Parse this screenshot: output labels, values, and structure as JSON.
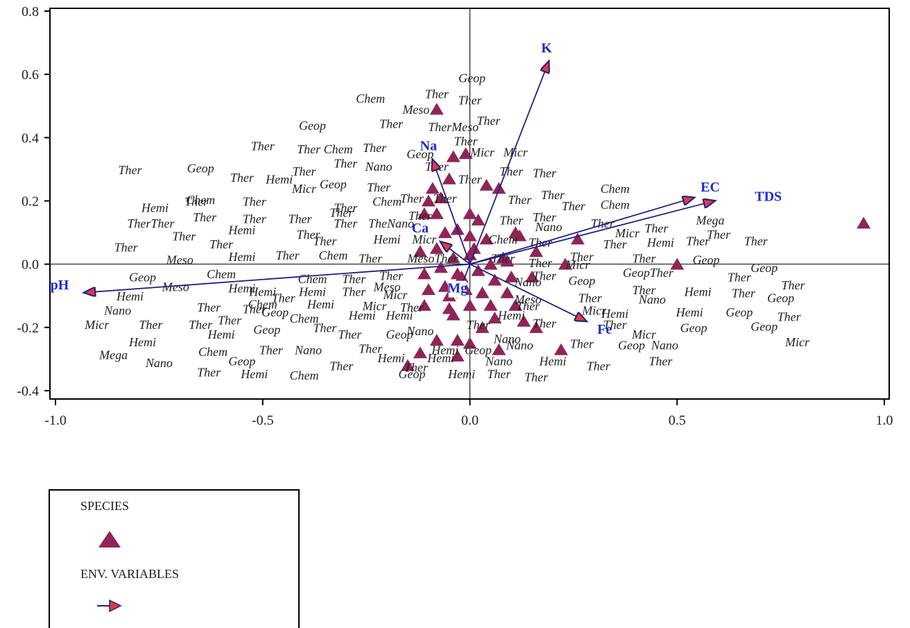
{
  "chart_data": {
    "type": "scatter",
    "title": "",
    "xlabel": "",
    "ylabel": "",
    "xlim": [
      -1.0,
      1.0
    ],
    "ylim": [
      -0.4,
      0.8
    ],
    "xticks": [
      -1.0,
      -0.5,
      0.0,
      0.5,
      1.0
    ],
    "xtick_labels": [
      "-1.0",
      "-0.5",
      "0.0",
      "0.5",
      "1.0"
    ],
    "yticks": [
      0.8,
      0.6,
      0.4,
      0.2,
      0.0,
      -0.2,
      -0.4
    ],
    "ytick_labels": [
      "0.8",
      "0.6",
      "0.4",
      "0.2",
      "0.0",
      "-0.2",
      "-0.4"
    ],
    "zero_lines": true,
    "colors": {
      "species": "#8f2557",
      "env_arrow": "#1f1f8a",
      "arrow_head": "#e63a3a",
      "env_label": "#1a2ad4"
    },
    "env_variables": [
      {
        "name": "K",
        "x": 0.19,
        "y": 0.64
      },
      {
        "name": "Na",
        "x": -0.09,
        "y": 0.33
      },
      {
        "name": "EC",
        "x": 0.54,
        "y": 0.21
      },
      {
        "name": "TDS",
        "x": 0.59,
        "y": 0.2
      },
      {
        "name": "Ca",
        "x": -0.07,
        "y": 0.07
      },
      {
        "name": "pH",
        "x": -0.93,
        "y": -0.09
      },
      {
        "name": "Fe",
        "x": 0.28,
        "y": -0.18
      },
      {
        "name": "Mg",
        "x": -0.03,
        "y": -0.1
      }
    ],
    "env_label_positions": [
      {
        "name": "K",
        "x": 0.185,
        "y": 0.67
      },
      {
        "name": "Na",
        "x": -0.1,
        "y": 0.36
      },
      {
        "name": "EC",
        "x": 0.58,
        "y": 0.23
      },
      {
        "name": "TDS",
        "x": 0.72,
        "y": 0.2
      },
      {
        "name": "Ca",
        "x": -0.12,
        "y": 0.1
      },
      {
        "name": "pH",
        "x": -0.99,
        "y": -0.08
      },
      {
        "name": "Fe",
        "x": 0.325,
        "y": -0.22
      },
      {
        "name": "Mg",
        "x": -0.03,
        "y": -0.09
      }
    ],
    "species_points": [
      {
        "x": 0.95,
        "y": 0.13
      },
      {
        "x": -0.08,
        "y": 0.49
      },
      {
        "x": -0.04,
        "y": 0.34
      },
      {
        "x": -0.01,
        "y": 0.35
      },
      {
        "x": -0.05,
        "y": 0.27
      },
      {
        "x": -0.09,
        "y": 0.24
      },
      {
        "x": 0.04,
        "y": 0.25
      },
      {
        "x": 0.07,
        "y": 0.24
      },
      {
        "x": -0.11,
        "y": 0.16
      },
      {
        "x": -0.08,
        "y": 0.16
      },
      {
        "x": -0.1,
        "y": 0.2
      },
      {
        "x": -0.07,
        "y": 0.21
      },
      {
        "x": 0.0,
        "y": 0.16
      },
      {
        "x": 0.02,
        "y": 0.14
      },
      {
        "x": -0.03,
        "y": 0.11
      },
      {
        "x": 0.0,
        "y": 0.09
      },
      {
        "x": 0.04,
        "y": 0.08
      },
      {
        "x": -0.06,
        "y": 0.1
      },
      {
        "x": 0.11,
        "y": 0.1
      },
      {
        "x": 0.12,
        "y": 0.09
      },
      {
        "x": 0.16,
        "y": 0.04
      },
      {
        "x": 0.26,
        "y": 0.08
      },
      {
        "x": 0.23,
        "y": 0.0
      },
      {
        "x": 0.5,
        "y": 0.0
      },
      {
        "x": -0.12,
        "y": 0.04
      },
      {
        "x": -0.08,
        "y": 0.05
      },
      {
        "x": -0.04,
        "y": 0.02
      },
      {
        "x": 0.0,
        "y": 0.03
      },
      {
        "x": 0.05,
        "y": 0.0
      },
      {
        "x": 0.09,
        "y": 0.01
      },
      {
        "x": -0.11,
        "y": -0.03
      },
      {
        "x": -0.07,
        "y": -0.01
      },
      {
        "x": -0.03,
        "y": -0.03
      },
      {
        "x": 0.02,
        "y": -0.02
      },
      {
        "x": 0.06,
        "y": -0.05
      },
      {
        "x": 0.1,
        "y": -0.04
      },
      {
        "x": 0.15,
        "y": -0.04
      },
      {
        "x": -0.1,
        "y": -0.08
      },
      {
        "x": -0.06,
        "y": -0.07
      },
      {
        "x": -0.01,
        "y": -0.08
      },
      {
        "x": 0.03,
        "y": -0.09
      },
      {
        "x": 0.09,
        "y": -0.09
      },
      {
        "x": -0.11,
        "y": -0.13
      },
      {
        "x": -0.05,
        "y": -0.14
      },
      {
        "x": 0.0,
        "y": -0.13
      },
      {
        "x": 0.05,
        "y": -0.13
      },
      {
        "x": 0.11,
        "y": -0.13
      },
      {
        "x": -0.04,
        "y": -0.16
      },
      {
        "x": 0.06,
        "y": -0.17
      },
      {
        "x": 0.13,
        "y": -0.18
      },
      {
        "x": 0.16,
        "y": -0.2
      },
      {
        "x": -0.08,
        "y": -0.24
      },
      {
        "x": -0.03,
        "y": -0.24
      },
      {
        "x": 0.0,
        "y": -0.25
      },
      {
        "x": 0.07,
        "y": -0.27
      },
      {
        "x": 0.22,
        "y": -0.27
      },
      {
        "x": -0.12,
        "y": -0.28
      },
      {
        "x": -0.03,
        "y": -0.29
      },
      {
        "x": -0.15,
        "y": -0.32
      },
      {
        "x": 0.03,
        "y": -0.2
      },
      {
        "x": -0.02,
        "y": -0.04
      },
      {
        "x": 0.01,
        "y": 0.05
      },
      {
        "x": -0.05,
        "y": -0.1
      },
      {
        "x": 0.08,
        "y": 0.02
      }
    ],
    "species_labels": [
      {
        "text": "Geop",
        "x": 0.005,
        "y": 0.575
      },
      {
        "text": "Chem",
        "x": -0.24,
        "y": 0.51
      },
      {
        "text": "Ther",
        "x": -0.08,
        "y": 0.525
      },
      {
        "text": "Meso",
        "x": -0.13,
        "y": 0.475
      },
      {
        "text": "Ther",
        "x": 0.0,
        "y": 0.505
      },
      {
        "text": "Geop",
        "x": -0.38,
        "y": 0.425
      },
      {
        "text": "Ther",
        "x": -0.19,
        "y": 0.43
      },
      {
        "text": "TherMeso",
        "x": -0.04,
        "y": 0.42
      },
      {
        "text": "Ther",
        "x": 0.045,
        "y": 0.44
      },
      {
        "text": "Ther",
        "x": -0.5,
        "y": 0.36
      },
      {
        "text": "Ther Chem",
        "x": -0.35,
        "y": 0.35
      },
      {
        "text": "Ther",
        "x": -0.23,
        "y": 0.355
      },
      {
        "text": "Geop",
        "x": -0.12,
        "y": 0.335
      },
      {
        "text": "Ther",
        "x": -0.01,
        "y": 0.375
      },
      {
        "text": "Micr",
        "x": 0.03,
        "y": 0.34
      },
      {
        "text": "Micr",
        "x": 0.11,
        "y": 0.34
      },
      {
        "text": "Ther",
        "x": -0.82,
        "y": 0.285
      },
      {
        "text": "Geop",
        "x": -0.65,
        "y": 0.29
      },
      {
        "text": "Ther",
        "x": -0.55,
        "y": 0.26
      },
      {
        "text": "Hemi",
        "x": -0.46,
        "y": 0.255
      },
      {
        "text": "Ther",
        "x": -0.4,
        "y": 0.28
      },
      {
        "text": "Ther",
        "x": -0.3,
        "y": 0.305
      },
      {
        "text": "Nano",
        "x": -0.22,
        "y": 0.295
      },
      {
        "text": "Ther",
        "x": -0.08,
        "y": 0.295
      },
      {
        "text": "Ther",
        "x": 0.0,
        "y": 0.255
      },
      {
        "text": "Ther",
        "x": 0.1,
        "y": 0.28
      },
      {
        "text": "Ther",
        "x": 0.18,
        "y": 0.275
      },
      {
        "text": "Micr",
        "x": -0.4,
        "y": 0.225
      },
      {
        "text": "Geop",
        "x": -0.33,
        "y": 0.24
      },
      {
        "text": "Ther",
        "x": -0.22,
        "y": 0.23
      },
      {
        "text": "Ther",
        "x": -0.14,
        "y": 0.195
      },
      {
        "text": "Chem",
        "x": -0.65,
        "y": 0.19
      },
      {
        "text": "Hemi",
        "x": -0.76,
        "y": 0.165
      },
      {
        "text": "Ther",
        "x": -0.66,
        "y": 0.185
      },
      {
        "text": "Ther",
        "x": -0.52,
        "y": 0.185
      },
      {
        "text": "Ther",
        "x": -0.3,
        "y": 0.165
      },
      {
        "text": "Chem",
        "x": -0.2,
        "y": 0.185
      },
      {
        "text": "Ther",
        "x": -0.06,
        "y": 0.195
      },
      {
        "text": "Ther",
        "x": 0.12,
        "y": 0.19
      },
      {
        "text": "Ther",
        "x": 0.2,
        "y": 0.205
      },
      {
        "text": "Chem",
        "x": 0.35,
        "y": 0.225
      },
      {
        "text": "Ther",
        "x": 0.25,
        "y": 0.17
      },
      {
        "text": "Chem",
        "x": 0.35,
        "y": 0.175
      },
      {
        "text": "TherTher",
        "x": -0.77,
        "y": 0.115
      },
      {
        "text": "Ther",
        "x": -0.64,
        "y": 0.135
      },
      {
        "text": "Ther",
        "x": -0.52,
        "y": 0.13
      },
      {
        "text": "Ther",
        "x": -0.41,
        "y": 0.13
      },
      {
        "text": "Ther",
        "x": -0.31,
        "y": 0.15
      },
      {
        "text": "TheNano",
        "x": -0.19,
        "y": 0.115
      },
      {
        "text": "Ther",
        "x": -0.12,
        "y": 0.14
      },
      {
        "text": "Ther",
        "x": 0.1,
        "y": 0.125
      },
      {
        "text": "Ther",
        "x": 0.18,
        "y": 0.135
      },
      {
        "text": "Nano",
        "x": 0.19,
        "y": 0.105
      },
      {
        "text": "Ther",
        "x": 0.32,
        "y": 0.115
      },
      {
        "text": "Mega",
        "x": 0.58,
        "y": 0.125
      },
      {
        "text": "Ther",
        "x": -0.69,
        "y": 0.075
      },
      {
        "text": "Hemi",
        "x": -0.55,
        "y": 0.095
      },
      {
        "text": "Ther",
        "x": -0.39,
        "y": 0.08
      },
      {
        "text": "Ther",
        "x": -0.3,
        "y": 0.115
      },
      {
        "text": "Micr",
        "x": 0.38,
        "y": 0.085
      },
      {
        "text": "Ther",
        "x": 0.45,
        "y": 0.1
      },
      {
        "text": "Ther",
        "x": 0.6,
        "y": 0.08
      },
      {
        "text": "Ther",
        "x": -0.83,
        "y": 0.04
      },
      {
        "text": "Ther",
        "x": -0.6,
        "y": 0.05
      },
      {
        "text": "Ther",
        "x": -0.35,
        "y": 0.06
      },
      {
        "text": "Hemi",
        "x": -0.2,
        "y": 0.065
      },
      {
        "text": "Micr",
        "x": -0.11,
        "y": 0.065
      },
      {
        "text": "Chem",
        "x": 0.08,
        "y": 0.065
      },
      {
        "text": "Ther",
        "x": 0.17,
        "y": 0.055
      },
      {
        "text": "Ther",
        "x": 0.35,
        "y": 0.05
      },
      {
        "text": "Hemi",
        "x": 0.46,
        "y": 0.055
      },
      {
        "text": "Ther",
        "x": 0.55,
        "y": 0.06
      },
      {
        "text": "Ther",
        "x": 0.69,
        "y": 0.06
      },
      {
        "text": "Meso",
        "x": -0.7,
        "y": 0.0
      },
      {
        "text": "Hemi",
        "x": -0.55,
        "y": 0.01
      },
      {
        "text": "Ther",
        "x": -0.44,
        "y": 0.015
      },
      {
        "text": "Chem",
        "x": -0.33,
        "y": 0.015
      },
      {
        "text": "Ther",
        "x": -0.24,
        "y": 0.005
      },
      {
        "text": "MesoTher",
        "x": -0.09,
        "y": 0.005
      },
      {
        "text": "Ther",
        "x": 0.08,
        "y": 0.005
      },
      {
        "text": "Ther",
        "x": 0.17,
        "y": -0.01
      },
      {
        "text": "Ther",
        "x": 0.27,
        "y": 0.01
      },
      {
        "text": "Ther",
        "x": 0.42,
        "y": 0.005
      },
      {
        "text": "Geop",
        "x": 0.57,
        "y": 0.0
      },
      {
        "text": "Micr",
        "x": 0.26,
        "y": -0.015
      },
      {
        "text": "Geop",
        "x": -0.79,
        "y": -0.055
      },
      {
        "text": "Chem",
        "x": -0.6,
        "y": -0.045
      },
      {
        "text": "Chem",
        "x": -0.38,
        "y": -0.06
      },
      {
        "text": "Ther",
        "x": -0.28,
        "y": -0.06
      },
      {
        "text": "Ther",
        "x": -0.19,
        "y": -0.05
      },
      {
        "text": "Meso",
        "x": -0.71,
        "y": -0.085
      },
      {
        "text": "Hemi",
        "x": -0.55,
        "y": -0.09
      },
      {
        "text": "Hemi",
        "x": -0.5,
        "y": -0.1
      },
      {
        "text": "Hemi",
        "x": -0.38,
        "y": -0.1
      },
      {
        "text": "Ther",
        "x": -0.28,
        "y": -0.1
      },
      {
        "text": "Meso",
        "x": -0.2,
        "y": -0.085
      },
      {
        "text": "Micr",
        "x": -0.18,
        "y": -0.11
      },
      {
        "text": "Nano",
        "x": 0.14,
        "y": -0.07
      },
      {
        "text": "Ther",
        "x": 0.18,
        "y": -0.05
      },
      {
        "text": "Geop",
        "x": 0.27,
        "y": -0.065
      },
      {
        "text": "GeopTher",
        "x": 0.43,
        "y": -0.04
      },
      {
        "text": "Ther",
        "x": 0.65,
        "y": -0.055
      },
      {
        "text": "Geop",
        "x": 0.71,
        "y": -0.025
      },
      {
        "text": "Hemi",
        "x": -0.82,
        "y": -0.115
      },
      {
        "text": "Ther",
        "x": -0.45,
        "y": -0.12
      },
      {
        "text": "Chem",
        "x": -0.5,
        "y": -0.14
      },
      {
        "text": "Ther",
        "x": -0.63,
        "y": -0.15
      },
      {
        "text": "Ther",
        "x": -0.52,
        "y": -0.155
      },
      {
        "text": "Geop",
        "x": -0.47,
        "y": -0.165
      },
      {
        "text": "Hemi",
        "x": -0.36,
        "y": -0.14
      },
      {
        "text": "Micr",
        "x": -0.23,
        "y": -0.145
      },
      {
        "text": "Ther",
        "x": -0.14,
        "y": -0.15
      },
      {
        "text": "Nano",
        "x": -0.85,
        "y": -0.16
      },
      {
        "text": "Meso",
        "x": 0.14,
        "y": -0.125
      },
      {
        "text": "Ther",
        "x": 0.29,
        "y": -0.12
      },
      {
        "text": "Ther",
        "x": 0.42,
        "y": -0.095
      },
      {
        "text": "Nano",
        "x": 0.44,
        "y": -0.125
      },
      {
        "text": "Hemi",
        "x": 0.55,
        "y": -0.1
      },
      {
        "text": "Ther",
        "x": 0.66,
        "y": -0.105
      },
      {
        "text": "Geop",
        "x": 0.75,
        "y": -0.12
      },
      {
        "text": "Ther",
        "x": 0.78,
        "y": -0.08
      },
      {
        "text": "Micr",
        "x": -0.9,
        "y": -0.205
      },
      {
        "text": "Ther",
        "x": -0.77,
        "y": -0.205
      },
      {
        "text": "Ther",
        "x": -0.65,
        "y": -0.205
      },
      {
        "text": "Ther",
        "x": -0.58,
        "y": -0.19
      },
      {
        "text": "Chem",
        "x": -0.4,
        "y": -0.185
      },
      {
        "text": "Hemi",
        "x": -0.26,
        "y": -0.175
      },
      {
        "text": "Hemi",
        "x": -0.17,
        "y": -0.175
      },
      {
        "text": "Hemi",
        "x": 0.1,
        "y": -0.175
      },
      {
        "text": "Ther",
        "x": 0.14,
        "y": -0.145
      },
      {
        "text": "Micr",
        "x": 0.3,
        "y": -0.16
      },
      {
        "text": "Hemi",
        "x": 0.35,
        "y": -0.17
      },
      {
        "text": "Hemi",
        "x": 0.53,
        "y": -0.165
      },
      {
        "text": "Geop",
        "x": 0.65,
        "y": -0.165
      },
      {
        "text": "Ther",
        "x": 0.77,
        "y": -0.18
      },
      {
        "text": "Hemi",
        "x": -0.6,
        "y": -0.235
      },
      {
        "text": "Geop",
        "x": -0.49,
        "y": -0.22
      },
      {
        "text": "Ther",
        "x": -0.35,
        "y": -0.215
      },
      {
        "text": "Ther",
        "x": -0.29,
        "y": -0.235
      },
      {
        "text": "Geop",
        "x": -0.17,
        "y": -0.235
      },
      {
        "text": "Nano",
        "x": -0.12,
        "y": -0.225
      },
      {
        "text": "Ther",
        "x": 0.02,
        "y": -0.205
      },
      {
        "text": "Ther",
        "x": 0.18,
        "y": -0.2
      },
      {
        "text": "Ther",
        "x": 0.35,
        "y": -0.205
      },
      {
        "text": "Micr",
        "x": 0.42,
        "y": -0.235
      },
      {
        "text": "Geop",
        "x": 0.54,
        "y": -0.215
      },
      {
        "text": "Geop",
        "x": 0.71,
        "y": -0.21
      },
      {
        "text": "Nano",
        "x": 0.09,
        "y": -0.25
      },
      {
        "text": "Hemi",
        "x": -0.79,
        "y": -0.26
      },
      {
        "text": "Chem",
        "x": -0.62,
        "y": -0.29
      },
      {
        "text": "Ther",
        "x": -0.48,
        "y": -0.285
      },
      {
        "text": "Nano",
        "x": -0.39,
        "y": -0.285
      },
      {
        "text": "Ther",
        "x": -0.24,
        "y": -0.28
      },
      {
        "text": "Nano",
        "x": 0.12,
        "y": -0.27
      },
      {
        "text": "Ther",
        "x": 0.27,
        "y": -0.265
      },
      {
        "text": "Geop",
        "x": 0.39,
        "y": -0.27
      },
      {
        "text": "Nano",
        "x": 0.47,
        "y": -0.27
      },
      {
        "text": "Micr",
        "x": 0.79,
        "y": -0.26
      },
      {
        "text": "Mega",
        "x": -0.86,
        "y": -0.3
      },
      {
        "text": "Nano",
        "x": -0.75,
        "y": -0.325
      },
      {
        "text": "Geop",
        "x": -0.55,
        "y": -0.32
      },
      {
        "text": "Ther",
        "x": -0.31,
        "y": -0.335
      },
      {
        "text": "Hemi",
        "x": -0.19,
        "y": -0.31
      },
      {
        "text": "Hemi",
        "x": -0.06,
        "y": -0.285
      },
      {
        "text": "Geop",
        "x": 0.02,
        "y": -0.285
      },
      {
        "text": "Hemi",
        "x": -0.07,
        "y": -0.31
      },
      {
        "text": "Nano",
        "x": 0.07,
        "y": -0.32
      },
      {
        "text": "Hemi",
        "x": 0.2,
        "y": -0.32
      },
      {
        "text": "Ther",
        "x": 0.31,
        "y": -0.335
      },
      {
        "text": "Ther",
        "x": 0.46,
        "y": -0.32
      },
      {
        "text": "Ther",
        "x": -0.13,
        "y": -0.34
      },
      {
        "text": "Ther",
        "x": -0.63,
        "y": -0.355
      },
      {
        "text": "Hemi",
        "x": -0.52,
        "y": -0.36
      },
      {
        "text": "Chem",
        "x": -0.4,
        "y": -0.365
      },
      {
        "text": "Geop",
        "x": -0.14,
        "y": -0.36
      },
      {
        "text": "Hemi",
        "x": -0.02,
        "y": -0.36
      },
      {
        "text": "Ther",
        "x": 0.07,
        "y": -0.36
      },
      {
        "text": "Ther",
        "x": 0.16,
        "y": -0.37
      }
    ]
  },
  "legend": {
    "species_label": "SPECIES",
    "env_label": "ENV. VARIABLES"
  }
}
